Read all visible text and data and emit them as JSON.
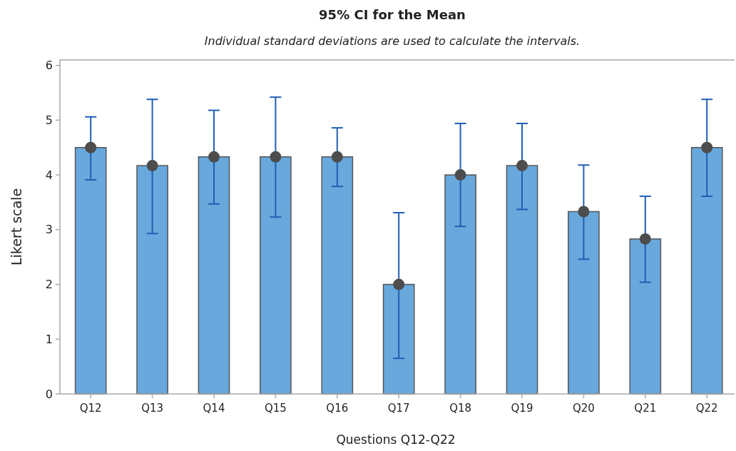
{
  "chart_data": {
    "type": "bar",
    "title": "95% CI for the Mean",
    "subtitle": "Individual standard deviations are used to calculate the intervals.",
    "xlabel": "Questions Q12-Q22",
    "ylabel": "Likert scale",
    "categories": [
      "Q12",
      "Q13",
      "Q14",
      "Q15",
      "Q16",
      "Q17",
      "Q18",
      "Q19",
      "Q20",
      "Q21",
      "Q22"
    ],
    "series": [
      {
        "color": "#68a8dc",
        "values": [
          4.5,
          4.17,
          4.33,
          4.33,
          4.33,
          2.0,
          4.0,
          4.17,
          3.33,
          2.83,
          4.5
        ],
        "errors": [
          [
            3.91,
            5.06
          ],
          [
            2.93,
            5.38
          ],
          [
            3.47,
            5.18
          ],
          [
            3.23,
            5.42
          ],
          [
            3.79,
            4.86
          ],
          [
            0.65,
            3.31
          ],
          [
            3.06,
            4.94
          ],
          [
            3.37,
            4.94
          ],
          [
            2.46,
            4.18
          ],
          [
            2.04,
            3.61
          ],
          [
            3.61,
            5.38
          ]
        ]
      },
      {
        "type": "scatter",
        "color": "#4d4d4d",
        "x": [
          "Q12",
          "Q13",
          "Q14",
          "Q15",
          "Q16",
          "Q17",
          "Q18",
          "Q19",
          "Q20",
          "Q21",
          "Q22"
        ],
        "values": [
          4.5,
          4.17,
          4.33,
          4.33,
          4.33,
          2.0,
          4.0,
          4.17,
          3.33,
          2.83,
          4.5
        ]
      }
    ],
    "ylim": [
      0,
      6.1
    ],
    "yticks": [
      0,
      1,
      2,
      3,
      4,
      5,
      6
    ],
    "grid": false,
    "marker": "circle"
  }
}
